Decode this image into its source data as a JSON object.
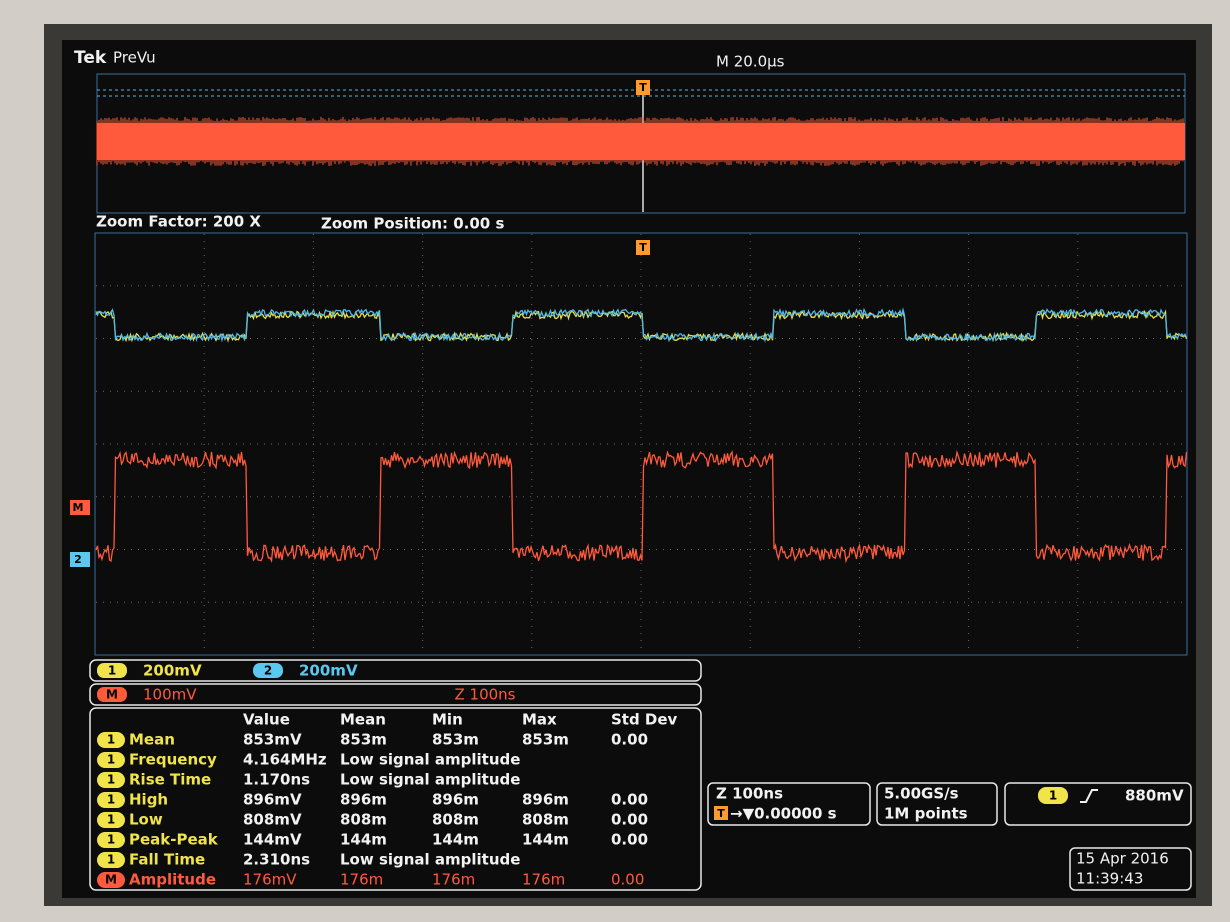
{
  "header": {
    "brand": "Tek",
    "mode": "PreVu",
    "timebase": "M 20.0µs"
  },
  "zoom": {
    "factor": "Zoom Factor: 200 X",
    "position": "Zoom Position: 0.00 s"
  },
  "markers": {
    "trigger_top": "T",
    "trigger_zoom": "T",
    "math": "M",
    "ch2": "2"
  },
  "channels": {
    "row1": [
      {
        "badge": "1",
        "scale": "200mV",
        "color": "#f0e44a"
      },
      {
        "badge": "2",
        "scale": "200mV",
        "color": "#5cc8f0"
      }
    ],
    "row2": {
      "badge": "M",
      "scale": "100mV",
      "zoom": "Z 100ns",
      "color": "#ff5a3c"
    }
  },
  "measurements": {
    "columns": [
      "Value",
      "Mean",
      "Min",
      "Max",
      "Std Dev"
    ],
    "rows": [
      {
        "badge": "1",
        "name": "Mean",
        "cells": [
          "853mV",
          "853m",
          "853m",
          "853m",
          "0.00"
        ],
        "color": "#f0e44a"
      },
      {
        "badge": "1",
        "name": "Frequency",
        "cells": [
          "4.164MHz",
          "Low signal amplitude"
        ],
        "color": "#f0e44a"
      },
      {
        "badge": "1",
        "name": "Rise Time",
        "cells": [
          "1.170ns",
          "Low signal amplitude"
        ],
        "color": "#f0e44a"
      },
      {
        "badge": "1",
        "name": "High",
        "cells": [
          "896mV",
          "896m",
          "896m",
          "896m",
          "0.00"
        ],
        "color": "#f0e44a"
      },
      {
        "badge": "1",
        "name": "Low",
        "cells": [
          "808mV",
          "808m",
          "808m",
          "808m",
          "0.00"
        ],
        "color": "#f0e44a"
      },
      {
        "badge": "1",
        "name": "Peak-Peak",
        "cells": [
          "144mV",
          "144m",
          "144m",
          "144m",
          "0.00"
        ],
        "color": "#f0e44a"
      },
      {
        "badge": "1",
        "name": "Fall Time",
        "cells": [
          "2.310ns",
          "Low signal amplitude"
        ],
        "color": "#f0e44a"
      },
      {
        "badge": "M",
        "name": "Amplitude",
        "cells": [
          "176mV",
          "176m",
          "176m",
          "176m",
          "0.00"
        ],
        "color": "#ff5a3c"
      }
    ]
  },
  "status": {
    "zoom_time": "Z 100ns",
    "trigger_badge": "T",
    "trigger_pos": "→▼0.00000 s",
    "sample_rate": "5.00GS/s",
    "record": "1M points",
    "trigger_source": "1",
    "trigger_level": "880mV",
    "date": "15 Apr  2016",
    "time": "11:39:43"
  }
}
